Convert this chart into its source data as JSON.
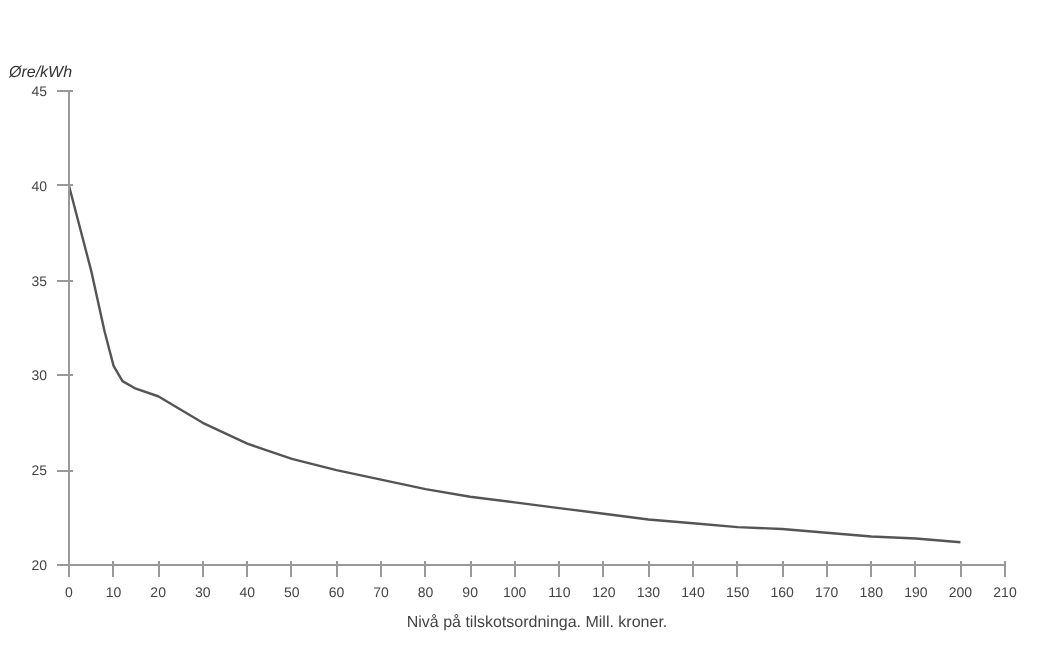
{
  "chart_data": {
    "type": "line",
    "xlabel": "Nivå på tilskotsordninga. Mill. kroner.",
    "ylabel": "Øre/kWh",
    "x": [
      0,
      5,
      8,
      10,
      12,
      15,
      20,
      30,
      40,
      50,
      60,
      70,
      80,
      90,
      100,
      110,
      120,
      130,
      140,
      150,
      160,
      170,
      180,
      190,
      200
    ],
    "series": [
      {
        "color": "#555555",
        "values": [
          40,
          35.5,
          32.3,
          30.5,
          29.7,
          29.3,
          28.9,
          27.5,
          26.4,
          25.6,
          25.0,
          24.5,
          24.0,
          23.6,
          23.3,
          23.0,
          22.7,
          22.4,
          22.2,
          22.0,
          21.9,
          21.7,
          21.5,
          21.4,
          21.2
        ]
      }
    ],
    "xlim": [
      0,
      210
    ],
    "ylim": [
      20,
      45
    ],
    "xticks": [
      0,
      10,
      20,
      30,
      40,
      50,
      60,
      70,
      80,
      90,
      100,
      110,
      120,
      130,
      140,
      150,
      160,
      170,
      180,
      190,
      200,
      210
    ],
    "yticks": [
      20,
      25,
      30,
      35,
      40,
      45
    ],
    "grid": false
  }
}
